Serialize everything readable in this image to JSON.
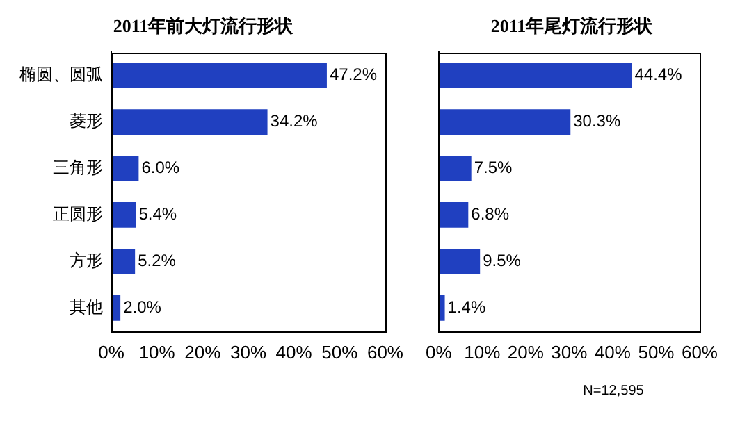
{
  "chart_data": [
    {
      "type": "bar",
      "orientation": "horizontal",
      "title": "2011年前大灯流行形状",
      "categories": [
        "椭圆、圆弧",
        "菱形",
        "三角形",
        "正圆形",
        "方形",
        "其他"
      ],
      "series": [
        {
          "color": "#2040c0",
          "values": [
            47.2,
            34.2,
            6.0,
            5.4,
            5.2,
            2.0
          ],
          "value_labels": [
            "47.2%",
            "34.2%",
            "6.0%",
            "5.4%",
            "5.2%",
            "2.0%"
          ]
        }
      ],
      "xlim": [
        0,
        60
      ],
      "xticks": [
        {
          "value": 0,
          "label": "0%"
        },
        {
          "value": 10,
          "label": "10%"
        },
        {
          "value": 20,
          "label": "20%"
        },
        {
          "value": 30,
          "label": "30%"
        },
        {
          "value": 40,
          "label": "40%"
        },
        {
          "value": 50,
          "label": "50%"
        },
        {
          "value": 60,
          "label": "60%"
        }
      ],
      "grid": false,
      "legend": false
    },
    {
      "type": "bar",
      "orientation": "horizontal",
      "title": "2011年尾灯流行形状",
      "categories": [
        null,
        null,
        null,
        null,
        null,
        null
      ],
      "series": [
        {
          "color": "#2040c0",
          "values": [
            44.4,
            30.3,
            7.5,
            6.8,
            9.5,
            1.4
          ],
          "value_labels": [
            "44.4%",
            "30.3%",
            "7.5%",
            "6.8%",
            "9.5%",
            "1.4%"
          ]
        }
      ],
      "xlim": [
        0,
        60
      ],
      "xticks": [
        {
          "value": 0,
          "label": "0%"
        },
        {
          "value": 10,
          "label": "10%"
        },
        {
          "value": 20,
          "label": "20%"
        },
        {
          "value": 30,
          "label": "30%"
        },
        {
          "value": 40,
          "label": "40%"
        },
        {
          "value": 50,
          "label": "50%"
        },
        {
          "value": 60,
          "label": "60%"
        }
      ],
      "grid": false,
      "legend": false,
      "tick_labels": "x",
      "annotations": [
        "N=12,595"
      ]
    }
  ]
}
